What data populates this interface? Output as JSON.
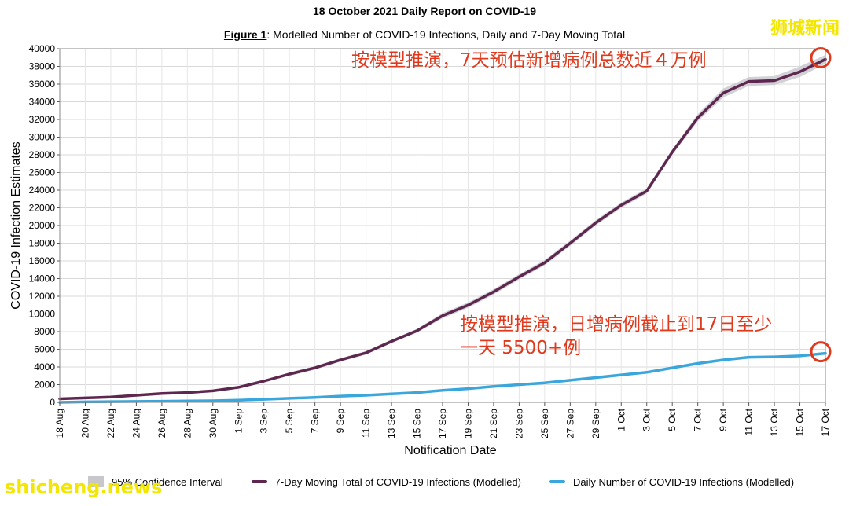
{
  "header": {
    "title": "18 October 2021 Daily Report on COVID-19",
    "figure_label": "Figure 1",
    "figure_caption": ": Modelled Number of COVID-19 Infections, Daily and 7-Day Moving Total"
  },
  "watermarks": {
    "top": "狮城新闻",
    "bottom": "shicheng.news"
  },
  "annotations": {
    "top": "按模型推演，7天预估新增病例总数近４万例",
    "bottom_line1": "按模型推演，日增病例截止到17日至少",
    "bottom_line2": "一天 5500+例"
  },
  "colors": {
    "total_line": "#5e2750",
    "daily_line": "#3aa6dc",
    "ci_band": "#c7c7cc",
    "annotation": "#e03a1e",
    "watermark": "#f3e600"
  },
  "legend": {
    "ci_label": "95% Confidence Interval",
    "total_label": "7-Day Moving Total of COVID-19 Infections (Modelled)",
    "daily_label": "Daily Number of COVID-19 Infections (Modelled)"
  },
  "chart_data": {
    "type": "line",
    "xlabel": "Notification Date",
    "ylabel": "COVID-19 Infection Estimates",
    "ylim": [
      0,
      40000
    ],
    "yticks": [
      0,
      2000,
      4000,
      6000,
      8000,
      10000,
      12000,
      14000,
      16000,
      18000,
      20000,
      22000,
      24000,
      26000,
      28000,
      30000,
      32000,
      34000,
      36000,
      38000,
      40000
    ],
    "xlim": [
      0,
      60
    ],
    "x_tick_labels": [
      "18 Aug",
      "20 Aug",
      "22 Aug",
      "24 Aug",
      "26 Aug",
      "28 Aug",
      "30 Aug",
      "1 Sep",
      "3 Sep",
      "5 Sep",
      "7 Sep",
      "9 Sep",
      "11 Sep",
      "13 Sep",
      "15 Sep",
      "17 Sep",
      "19 Sep",
      "21 Sep",
      "23 Sep",
      "25 Sep",
      "27 Sep",
      "29 Sep",
      "1 Oct",
      "3 Oct",
      "5 Oct",
      "7 Oct",
      "9 Oct",
      "11 Oct",
      "13 Oct",
      "15 Oct",
      "17 Oct"
    ],
    "grid": true,
    "legend_position": "bottom",
    "series": [
      {
        "name": "7-Day Moving Total of COVID-19 Infections (Modelled)",
        "x": [
          0,
          2,
          4,
          6,
          8,
          10,
          12,
          14,
          16,
          18,
          20,
          22,
          24,
          26,
          28,
          30,
          32,
          34,
          36,
          38,
          40,
          42,
          44,
          46,
          48,
          50,
          52,
          54,
          56,
          58,
          60
        ],
        "values": [
          400,
          500,
          600,
          800,
          1000,
          1100,
          1300,
          1700,
          2400,
          3200,
          3900,
          4800,
          5600,
          6900,
          8100,
          9800,
          11000,
          12500,
          14200,
          15800,
          18000,
          20300,
          22300,
          23900,
          28300,
          32200,
          35000,
          36300,
          36400,
          37400,
          38800
        ],
        "ci_lower": [
          300,
          400,
          500,
          700,
          900,
          1000,
          1200,
          1600,
          2300,
          3000,
          3700,
          4600,
          5400,
          6700,
          7900,
          9500,
          10700,
          12200,
          13900,
          15500,
          17700,
          20000,
          22000,
          23600,
          28000,
          31800,
          34500,
          35800,
          35900,
          36800,
          38300
        ],
        "ci_upper": [
          500,
          600,
          700,
          900,
          1100,
          1200,
          1400,
          1800,
          2500,
          3400,
          4100,
          5000,
          5800,
          7100,
          8300,
          10100,
          11300,
          12800,
          14500,
          16100,
          18300,
          20600,
          22600,
          24200,
          28600,
          32600,
          35500,
          36800,
          36900,
          38000,
          39300
        ]
      },
      {
        "name": "Daily Number of COVID-19 Infections (Modelled)",
        "x": [
          0,
          2,
          4,
          6,
          8,
          10,
          12,
          14,
          16,
          18,
          20,
          22,
          24,
          26,
          28,
          30,
          32,
          34,
          36,
          38,
          40,
          42,
          44,
          46,
          48,
          50,
          52,
          54,
          56,
          58,
          60
        ],
        "values": [
          0,
          50,
          80,
          100,
          120,
          150,
          180,
          250,
          350,
          450,
          550,
          700,
          800,
          950,
          1100,
          1350,
          1550,
          1800,
          2000,
          2200,
          2500,
          2800,
          3100,
          3400,
          3900,
          4400,
          4800,
          5100,
          5150,
          5250,
          5550
        ],
        "ci_lower": [
          0,
          20,
          50,
          70,
          90,
          120,
          150,
          220,
          320,
          420,
          520,
          670,
          770,
          920,
          1070,
          1300,
          1500,
          1750,
          1950,
          2150,
          2450,
          2750,
          3050,
          3350,
          3850,
          4350,
          4750,
          5050,
          5100,
          5200,
          5450
        ],
        "ci_upper": [
          20,
          80,
          110,
          130,
          150,
          180,
          210,
          280,
          380,
          480,
          580,
          730,
          830,
          980,
          1130,
          1400,
          1600,
          1850,
          2050,
          2250,
          2550,
          2850,
          3150,
          3450,
          3950,
          4450,
          4850,
          5150,
          5200,
          5300,
          5650
        ]
      }
    ]
  }
}
